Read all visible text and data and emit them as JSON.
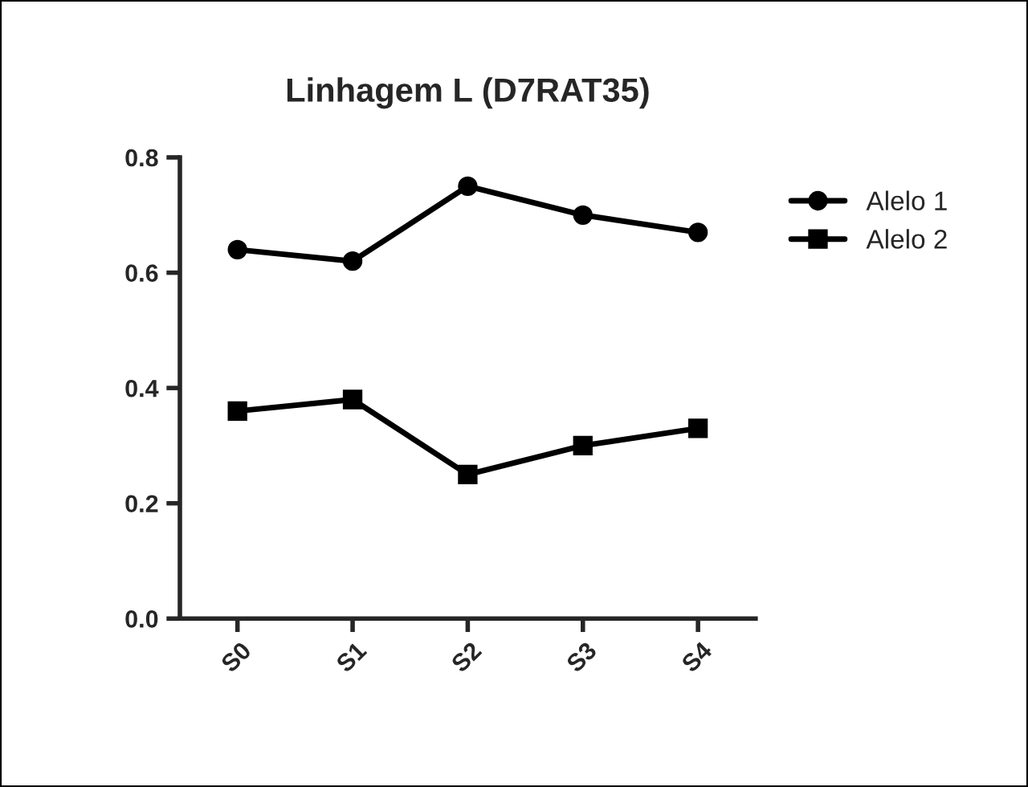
{
  "chart_data": {
    "type": "line",
    "title": "Linhagem L (D7RAT35)",
    "categories": [
      "S0",
      "S1",
      "S2",
      "S3",
      "S4"
    ],
    "series": [
      {
        "name": "Alelo 1",
        "color": "#000000",
        "marker": "circle",
        "values": [
          0.64,
          0.62,
          0.75,
          0.7,
          0.67
        ]
      },
      {
        "name": "Alelo 2",
        "color": "#000000",
        "marker": "square",
        "values": [
          0.36,
          0.38,
          0.25,
          0.3,
          0.33
        ]
      }
    ],
    "ylim": [
      0.0,
      0.8
    ],
    "yticks": [
      {
        "value": 0.0,
        "label": "0.0"
      },
      0.2,
      0.4,
      0.6,
      0.8
    ],
    "grid": false,
    "legend": "right",
    "line_style": "solid"
  }
}
